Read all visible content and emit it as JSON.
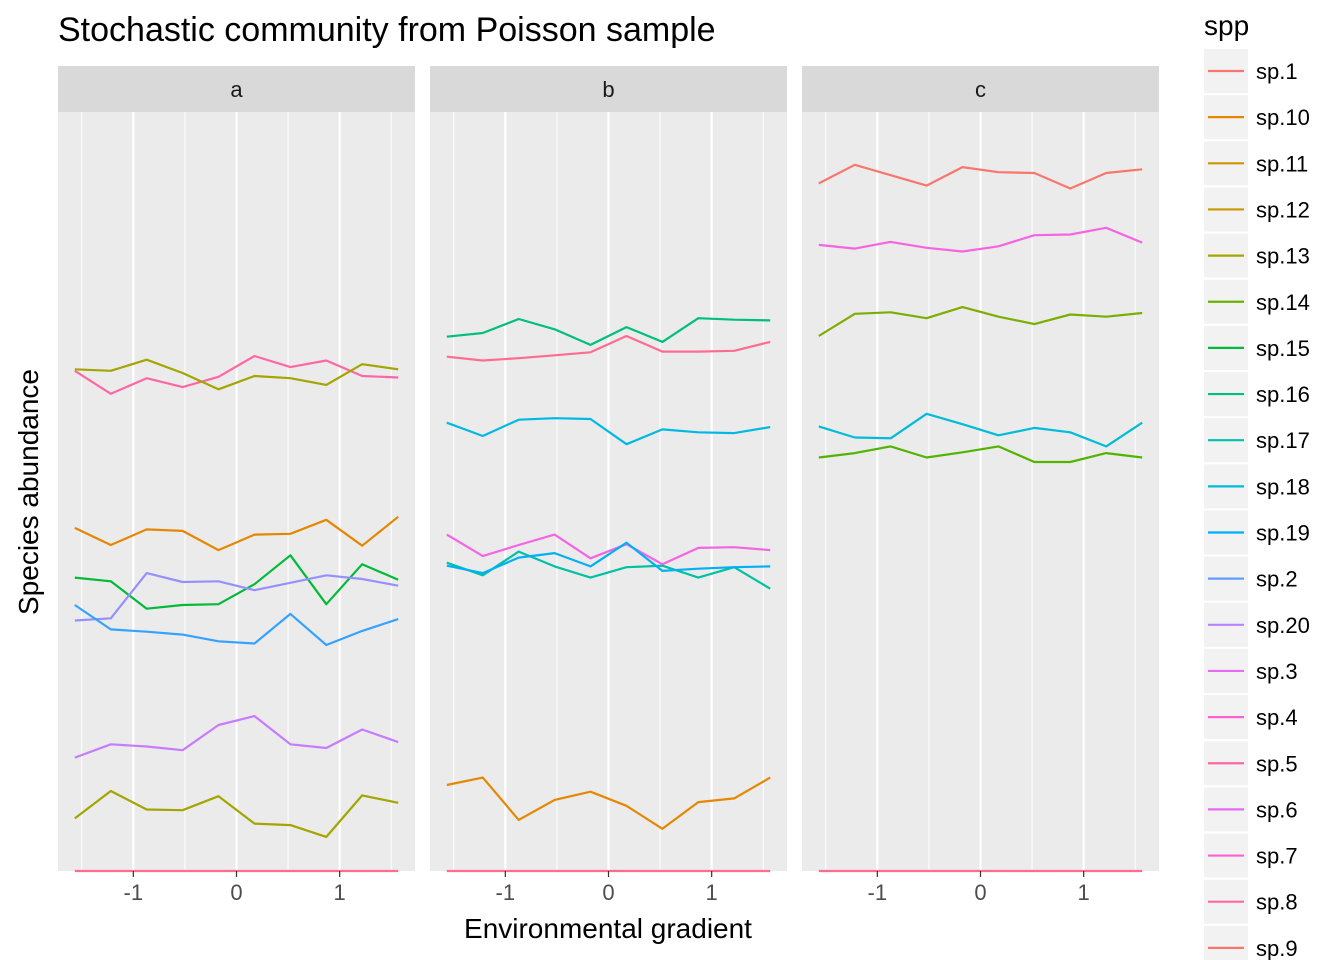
{
  "chart_data": {
    "type": "line",
    "title": "Stochastic community from Poisson sample",
    "xlabel": "Environmental gradient",
    "ylabel": "Species abundance",
    "legend_title": "spp",
    "legend_position": "right",
    "grid": true,
    "xlim": [
      -1.73,
      1.73
    ],
    "ylim": [
      0,
      100
    ],
    "x_ticks": [
      -1,
      0,
      1
    ],
    "x_tick_labels": [
      "-1",
      "0",
      "1"
    ],
    "x": [
      -1.5667,
      -1.2185,
      -0.8704,
      -0.5222,
      -0.1741,
      0.1741,
      0.5222,
      0.8704,
      1.2185,
      1.5667
    ],
    "legend": [
      {
        "name": "sp.1",
        "color": "#F8766D"
      },
      {
        "name": "sp.10",
        "color": "#E58700"
      },
      {
        "name": "sp.11",
        "color": "#C99800"
      },
      {
        "name": "sp.12",
        "color": "#C99800"
      },
      {
        "name": "sp.13",
        "color": "#A3A500"
      },
      {
        "name": "sp.14",
        "color": "#6BB100"
      },
      {
        "name": "sp.15",
        "color": "#00BA38"
      },
      {
        "name": "sp.16",
        "color": "#00BF7D"
      },
      {
        "name": "sp.17",
        "color": "#00C0AF"
      },
      {
        "name": "sp.18",
        "color": "#00BCD8"
      },
      {
        "name": "sp.19",
        "color": "#00B0F6"
      },
      {
        "name": "sp.2",
        "color": "#619CFF"
      },
      {
        "name": "sp.20",
        "color": "#B983FF"
      },
      {
        "name": "sp.3",
        "color": "#E76BF3"
      },
      {
        "name": "sp.4",
        "color": "#FD61D1"
      },
      {
        "name": "sp.5",
        "color": "#FF67A4"
      },
      {
        "name": "sp.6",
        "color": "#E76BF3"
      },
      {
        "name": "sp.7",
        "color": "#FD61D1"
      },
      {
        "name": "sp.8",
        "color": "#FF67A4"
      },
      {
        "name": "sp.9",
        "color": "#F8766D"
      }
    ],
    "panels": [
      {
        "label": "a",
        "series": [
          {
            "color": "#FF67A4",
            "values": [
              67.5,
              64.4,
              66.5,
              65.3,
              66.7,
              69.5,
              68.0,
              68.9,
              66.8,
              66.6
            ]
          },
          {
            "color": "#A3A500",
            "values": [
              67.7,
              67.5,
              69.0,
              67.2,
              65.0,
              66.8,
              66.5,
              65.6,
              68.4,
              67.7
            ]
          },
          {
            "color": "#E58700",
            "values": [
              46.3,
              44.0,
              46.1,
              45.9,
              43.3,
              45.4,
              45.5,
              47.4,
              43.9,
              47.8
            ]
          },
          {
            "color": "#00BA38",
            "values": [
              39.6,
              39.1,
              35.4,
              35.9,
              36.0,
              38.7,
              42.6,
              36.0,
              41.4,
              39.3
            ]
          },
          {
            "color": "#9590FF",
            "values": [
              33.8,
              34.1,
              40.2,
              39.0,
              39.1,
              37.9,
              38.9,
              39.9,
              39.4,
              38.5
            ]
          },
          {
            "color": "#35A2FF",
            "values": [
              35.9,
              32.6,
              32.3,
              31.9,
              31.0,
              30.7,
              34.7,
              30.5,
              32.4,
              34.0
            ]
          },
          {
            "color": "#C77CFF",
            "values": [
              15.3,
              17.1,
              16.8,
              16.3,
              19.7,
              20.9,
              17.1,
              16.6,
              19.1,
              17.4
            ]
          },
          {
            "color": "#A3A500",
            "values": [
              7.1,
              10.8,
              8.3,
              8.2,
              10.1,
              6.4,
              6.2,
              4.6,
              10.2,
              9.2
            ]
          },
          {
            "color": "#FF6C91",
            "values": [
              0,
              0,
              0,
              0,
              0,
              0,
              0,
              0,
              0,
              0
            ]
          }
        ]
      },
      {
        "label": "b",
        "series": [
          {
            "color": "#00BF7D",
            "values": [
              72.1,
              72.6,
              74.5,
              73.1,
              71.0,
              73.4,
              71.4,
              74.6,
              74.4,
              74.3
            ]
          },
          {
            "color": "#FF6C91",
            "values": [
              69.4,
              68.9,
              69.2,
              69.6,
              70.0,
              72.2,
              70.1,
              70.1,
              70.2,
              71.4
            ]
          },
          {
            "color": "#00B9E3",
            "values": [
              60.5,
              58.7,
              60.9,
              61.1,
              61.0,
              57.6,
              59.6,
              59.2,
              59.1,
              59.9
            ]
          },
          {
            "color": "#F564E3",
            "values": [
              45.4,
              42.5,
              44.0,
              45.4,
              42.2,
              44.1,
              41.4,
              43.6,
              43.7,
              43.3
            ]
          },
          {
            "color": "#00C1A3",
            "values": [
              41.6,
              39.9,
              43.1,
              41.1,
              39.6,
              41.0,
              41.2,
              39.6,
              41.0,
              38.1
            ]
          },
          {
            "color": "#00B0F6",
            "values": [
              41.2,
              40.2,
              42.3,
              42.9,
              41.1,
              44.3,
              40.5,
              40.8,
              41.0,
              41.1
            ]
          },
          {
            "color": "#E58700",
            "values": [
              11.6,
              12.6,
              6.9,
              9.6,
              10.7,
              8.8,
              5.7,
              9.3,
              9.8,
              12.6
            ]
          },
          {
            "color": "#FF6C91",
            "values": [
              0,
              0,
              0,
              0,
              0,
              0,
              0,
              0,
              0,
              0
            ]
          }
        ]
      },
      {
        "label": "c",
        "series": [
          {
            "color": "#F8766D",
            "values": [
              92.8,
              95.3,
              93.9,
              92.5,
              95.0,
              94.3,
              94.2,
              92.1,
              94.2,
              94.7
            ]
          },
          {
            "color": "#F564E3",
            "values": [
              84.5,
              84.0,
              84.9,
              84.1,
              83.6,
              84.3,
              85.8,
              85.9,
              86.8,
              84.8
            ]
          },
          {
            "color": "#7CAE00",
            "values": [
              72.2,
              75.2,
              75.4,
              74.6,
              76.1,
              74.8,
              73.8,
              75.1,
              74.8,
              75.3
            ]
          },
          {
            "color": "#00BCD8",
            "values": [
              60.0,
              58.5,
              58.4,
              61.7,
              60.3,
              58.8,
              59.8,
              59.2,
              57.3,
              60.5
            ]
          },
          {
            "color": "#53B400",
            "values": [
              55.8,
              56.4,
              57.3,
              55.8,
              56.5,
              57.3,
              55.2,
              55.2,
              56.4,
              55.8
            ]
          },
          {
            "color": "#FF6C91",
            "values": [
              0,
              0,
              0,
              0,
              0,
              0,
              0,
              0,
              0,
              0
            ]
          }
        ]
      }
    ]
  }
}
